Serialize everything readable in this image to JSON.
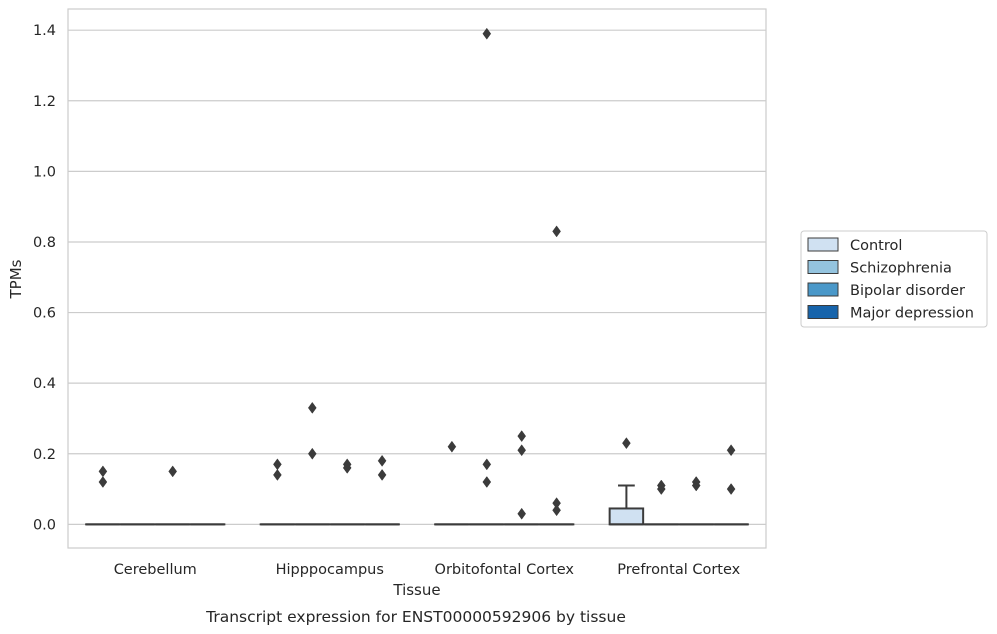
{
  "chart_data": {
    "type": "box",
    "caption": "Transcript expression for ENST00000592906 by tissue",
    "xlabel": "Tissue",
    "ylabel": "TPMs",
    "ylim": [
      -0.067,
      1.46
    ],
    "yticks": [
      "0.0",
      "0.2",
      "0.4",
      "0.6",
      "0.8",
      "1.0",
      "1.2",
      "1.4"
    ],
    "grid": "horizontal",
    "legend_position": "right",
    "categories": [
      "Cerebellum",
      "Hipppocampus",
      "Orbitofontal Cortex",
      "Prefrontal Cortex"
    ],
    "series": [
      {
        "name": "Control",
        "color": "#d0e1f2",
        "boxes": [
          {
            "q1": 0,
            "median": 0,
            "q3": 0,
            "whisker_low": 0,
            "whisker_high": 0,
            "outliers": [
              0.12,
              0.15
            ]
          },
          {
            "q1": 0,
            "median": 0,
            "q3": 0,
            "whisker_low": 0,
            "whisker_high": 0,
            "outliers": [
              0.14,
              0.17
            ]
          },
          {
            "q1": 0,
            "median": 0,
            "q3": 0,
            "whisker_low": 0,
            "whisker_high": 0,
            "outliers": [
              0.22
            ]
          },
          {
            "q1": 0,
            "median": 0,
            "q3": 0.045,
            "whisker_low": 0,
            "whisker_high": 0.11,
            "outliers": [
              0.23
            ]
          }
        ]
      },
      {
        "name": "Schizophrenia",
        "color": "#94c4df",
        "boxes": [
          {
            "q1": 0,
            "median": 0,
            "q3": 0,
            "whisker_low": 0,
            "whisker_high": 0,
            "outliers": []
          },
          {
            "q1": 0,
            "median": 0,
            "q3": 0,
            "whisker_low": 0,
            "whisker_high": 0,
            "outliers": [
              0.2,
              0.33
            ]
          },
          {
            "q1": 0,
            "median": 0,
            "q3": 0,
            "whisker_low": 0,
            "whisker_high": 0,
            "outliers": [
              0.12,
              0.17,
              1.39
            ]
          },
          {
            "q1": 0,
            "median": 0,
            "q3": 0,
            "whisker_low": 0,
            "whisker_high": 0,
            "outliers": [
              0.1,
              0.11
            ]
          }
        ]
      },
      {
        "name": "Bipolar disorder",
        "color": "#4a98c9",
        "boxes": [
          {
            "q1": 0,
            "median": 0,
            "q3": 0,
            "whisker_low": 0,
            "whisker_high": 0,
            "outliers": [
              0.15
            ]
          },
          {
            "q1": 0,
            "median": 0,
            "q3": 0,
            "whisker_low": 0,
            "whisker_high": 0,
            "outliers": [
              0.16,
              0.17
            ]
          },
          {
            "q1": 0,
            "median": 0,
            "q3": 0,
            "whisker_low": 0,
            "whisker_high": 0,
            "outliers": [
              0.03,
              0.21,
              0.25
            ]
          },
          {
            "q1": 0,
            "median": 0,
            "q3": 0,
            "whisker_low": 0,
            "whisker_high": 0,
            "outliers": [
              0.11,
              0.12
            ]
          }
        ]
      },
      {
        "name": "Major depression",
        "color": "#1764ab",
        "boxes": [
          {
            "q1": 0,
            "median": 0,
            "q3": 0,
            "whisker_low": 0,
            "whisker_high": 0,
            "outliers": []
          },
          {
            "q1": 0,
            "median": 0,
            "q3": 0,
            "whisker_low": 0,
            "whisker_high": 0,
            "outliers": [
              0.14,
              0.18
            ]
          },
          {
            "q1": 0,
            "median": 0,
            "q3": 0,
            "whisker_low": 0,
            "whisker_high": 0,
            "outliers": [
              0.04,
              0.06,
              0.83
            ]
          },
          {
            "q1": 0,
            "median": 0,
            "q3": 0,
            "whisker_low": 0,
            "whisker_high": 0,
            "outliers": [
              0.1,
              0.21
            ]
          }
        ]
      }
    ]
  },
  "colors": {
    "grid": "#cccccc",
    "frame": "#cccccc",
    "box_edge": "#3b3b3b",
    "outlier": "#3b3b3b"
  }
}
